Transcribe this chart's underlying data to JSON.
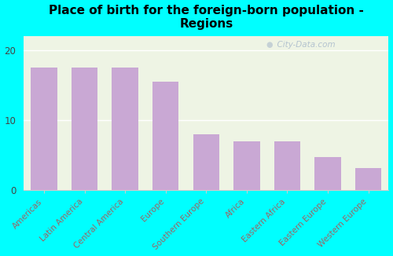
{
  "title": "Place of birth for the foreign-born population -\nRegions",
  "categories": [
    "Americas",
    "Latin America",
    "Central America",
    "Europe",
    "Southern Europe",
    "Africa",
    "Eastern Africa",
    "Eastern Europe",
    "Western Europe"
  ],
  "values": [
    17.5,
    17.5,
    17.5,
    15.5,
    8.0,
    7.0,
    7.0,
    4.8,
    3.2
  ],
  "bar_color": "#c9a8d4",
  "background_color": "#00ffff",
  "plot_bg_color": "#eef4e4",
  "ylabel_ticks": [
    0,
    10,
    20
  ],
  "ylim": [
    0,
    22
  ],
  "title_fontsize": 11,
  "tick_fontsize": 7.5,
  "xtick_color": "#996666",
  "watermark": "  City-Data.com"
}
